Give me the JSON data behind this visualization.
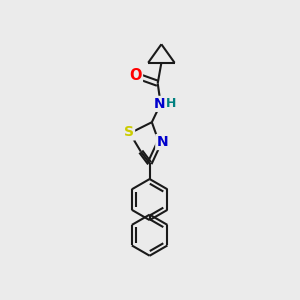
{
  "bg_color": "#ebebeb",
  "bond_color": "#1a1a1a",
  "bond_width": 1.5,
  "atom_colors": {
    "O": "#ff0000",
    "N": "#0000cc",
    "S": "#cccc00",
    "H": "#008080",
    "C": "#1a1a1a"
  },
  "font_size": 9.5
}
